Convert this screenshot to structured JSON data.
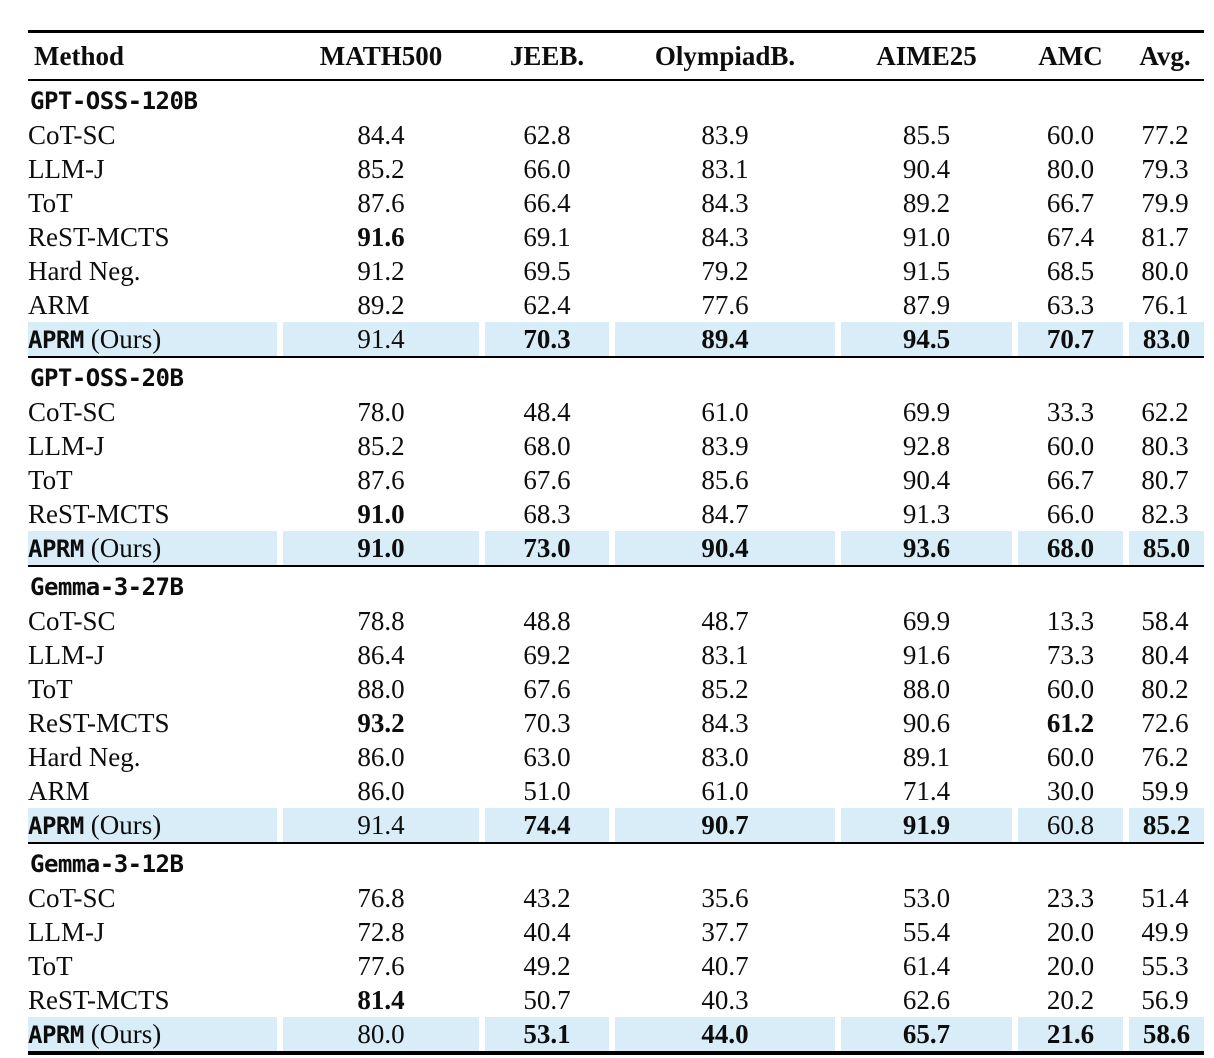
{
  "highlight_color": "#d9edf8",
  "table": {
    "columns": [
      {
        "label": "Method"
      },
      {
        "label": "MATH500"
      },
      {
        "label": "JEEB."
      },
      {
        "label": "OlympiadB."
      },
      {
        "label": "AIME25"
      },
      {
        "label": "AMC"
      },
      {
        "label": "Avg."
      }
    ],
    "sections": [
      {
        "model": "GPT-OSS-120B",
        "rows": [
          {
            "name": "CoT-SC",
            "mono": false,
            "highlight": false,
            "values": [
              "84.4",
              "62.8",
              "83.9",
              "85.5",
              "60.0",
              "77.2"
            ],
            "bold": [
              false,
              false,
              false,
              false,
              false,
              false
            ]
          },
          {
            "name": "LLM-J",
            "mono": false,
            "highlight": false,
            "values": [
              "85.2",
              "66.0",
              "83.1",
              "90.4",
              "80.0",
              "79.3"
            ],
            "bold": [
              false,
              false,
              false,
              false,
              false,
              false
            ]
          },
          {
            "name": "ToT",
            "mono": false,
            "highlight": false,
            "values": [
              "87.6",
              "66.4",
              "84.3",
              "89.2",
              "66.7",
              "79.9"
            ],
            "bold": [
              false,
              false,
              false,
              false,
              false,
              false
            ]
          },
          {
            "name": "ReST-MCTS",
            "mono": false,
            "highlight": false,
            "values": [
              "91.6",
              "69.1",
              "84.3",
              "91.0",
              "67.4",
              "81.7"
            ],
            "bold": [
              true,
              false,
              false,
              false,
              false,
              false
            ]
          },
          {
            "name": "Hard Neg.",
            "mono": false,
            "highlight": false,
            "values": [
              "91.2",
              "69.5",
              "79.2",
              "91.5",
              "68.5",
              "80.0"
            ],
            "bold": [
              false,
              false,
              false,
              false,
              false,
              false
            ]
          },
          {
            "name": "ARM",
            "mono": false,
            "highlight": false,
            "values": [
              "89.2",
              "62.4",
              "77.6",
              "87.9",
              "63.3",
              "76.1"
            ],
            "bold": [
              false,
              false,
              false,
              false,
              false,
              false
            ]
          },
          {
            "name": "APRM",
            "suffix": "(Ours)",
            "mono": true,
            "highlight": true,
            "values": [
              "91.4",
              "70.3",
              "89.4",
              "94.5",
              "70.7",
              "83.0"
            ],
            "bold": [
              false,
              true,
              true,
              true,
              true,
              true
            ]
          }
        ]
      },
      {
        "model": "GPT-OSS-20B",
        "rows": [
          {
            "name": "CoT-SC",
            "mono": false,
            "highlight": false,
            "values": [
              "78.0",
              "48.4",
              "61.0",
              "69.9",
              "33.3",
              "62.2"
            ],
            "bold": [
              false,
              false,
              false,
              false,
              false,
              false
            ]
          },
          {
            "name": "LLM-J",
            "mono": false,
            "highlight": false,
            "values": [
              "85.2",
              "68.0",
              "83.9",
              "92.8",
              "60.0",
              "80.3"
            ],
            "bold": [
              false,
              false,
              false,
              false,
              false,
              false
            ]
          },
          {
            "name": "ToT",
            "mono": false,
            "highlight": false,
            "values": [
              "87.6",
              "67.6",
              "85.6",
              "90.4",
              "66.7",
              "80.7"
            ],
            "bold": [
              false,
              false,
              false,
              false,
              false,
              false
            ]
          },
          {
            "name": "ReST-MCTS",
            "mono": false,
            "highlight": false,
            "values": [
              "91.0",
              "68.3",
              "84.7",
              "91.3",
              "66.0",
              "82.3"
            ],
            "bold": [
              true,
              false,
              false,
              false,
              false,
              false
            ]
          },
          {
            "name": "APRM",
            "suffix": "(Ours)",
            "mono": true,
            "highlight": true,
            "values": [
              "91.0",
              "73.0",
              "90.4",
              "93.6",
              "68.0",
              "85.0"
            ],
            "bold": [
              true,
              true,
              true,
              true,
              true,
              true
            ]
          }
        ]
      },
      {
        "model": "Gemma-3-27B",
        "rows": [
          {
            "name": "CoT-SC",
            "mono": false,
            "highlight": false,
            "values": [
              "78.8",
              "48.8",
              "48.7",
              "69.9",
              "13.3",
              "58.4"
            ],
            "bold": [
              false,
              false,
              false,
              false,
              false,
              false
            ]
          },
          {
            "name": "LLM-J",
            "mono": false,
            "highlight": false,
            "values": [
              "86.4",
              "69.2",
              "83.1",
              "91.6",
              "73.3",
              "80.4"
            ],
            "bold": [
              false,
              false,
              false,
              false,
              false,
              false
            ]
          },
          {
            "name": "ToT",
            "mono": false,
            "highlight": false,
            "values": [
              "88.0",
              "67.6",
              "85.2",
              "88.0",
              "60.0",
              "80.2"
            ],
            "bold": [
              false,
              false,
              false,
              false,
              false,
              false
            ]
          },
          {
            "name": "ReST-MCTS",
            "mono": false,
            "highlight": false,
            "values": [
              "93.2",
              "70.3",
              "84.3",
              "90.6",
              "61.2",
              "72.6"
            ],
            "bold": [
              true,
              false,
              false,
              false,
              true,
              false
            ]
          },
          {
            "name": "Hard Neg.",
            "mono": false,
            "highlight": false,
            "values": [
              "86.0",
              "63.0",
              "83.0",
              "89.1",
              "60.0",
              "76.2"
            ],
            "bold": [
              false,
              false,
              false,
              false,
              false,
              false
            ]
          },
          {
            "name": "ARM",
            "mono": false,
            "highlight": false,
            "values": [
              "86.0",
              "51.0",
              "61.0",
              "71.4",
              "30.0",
              "59.9"
            ],
            "bold": [
              false,
              false,
              false,
              false,
              false,
              false
            ]
          },
          {
            "name": "APRM",
            "suffix": "(Ours)",
            "mono": true,
            "highlight": true,
            "values": [
              "91.4",
              "74.4",
              "90.7",
              "91.9",
              "60.8",
              "85.2"
            ],
            "bold": [
              false,
              true,
              true,
              true,
              false,
              true
            ]
          }
        ]
      },
      {
        "model": "Gemma-3-12B",
        "rows": [
          {
            "name": "CoT-SC",
            "mono": false,
            "highlight": false,
            "values": [
              "76.8",
              "43.2",
              "35.6",
              "53.0",
              "23.3",
              "51.4"
            ],
            "bold": [
              false,
              false,
              false,
              false,
              false,
              false
            ]
          },
          {
            "name": "LLM-J",
            "mono": false,
            "highlight": false,
            "values": [
              "72.8",
              "40.4",
              "37.7",
              "55.4",
              "20.0",
              "49.9"
            ],
            "bold": [
              false,
              false,
              false,
              false,
              false,
              false
            ]
          },
          {
            "name": "ToT",
            "mono": false,
            "highlight": false,
            "values": [
              "77.6",
              "49.2",
              "40.7",
              "61.4",
              "20.0",
              "55.3"
            ],
            "bold": [
              false,
              false,
              false,
              false,
              false,
              false
            ]
          },
          {
            "name": "ReST-MCTS",
            "mono": false,
            "highlight": false,
            "values": [
              "81.4",
              "50.7",
              "40.3",
              "62.6",
              "20.2",
              "56.9"
            ],
            "bold": [
              true,
              false,
              false,
              false,
              false,
              false
            ]
          },
          {
            "name": "APRM",
            "suffix": "(Ours)",
            "mono": true,
            "highlight": true,
            "values": [
              "80.0",
              "53.1",
              "44.0",
              "65.7",
              "21.6",
              "58.6"
            ],
            "bold": [
              false,
              true,
              true,
              true,
              true,
              true
            ]
          }
        ]
      }
    ]
  }
}
